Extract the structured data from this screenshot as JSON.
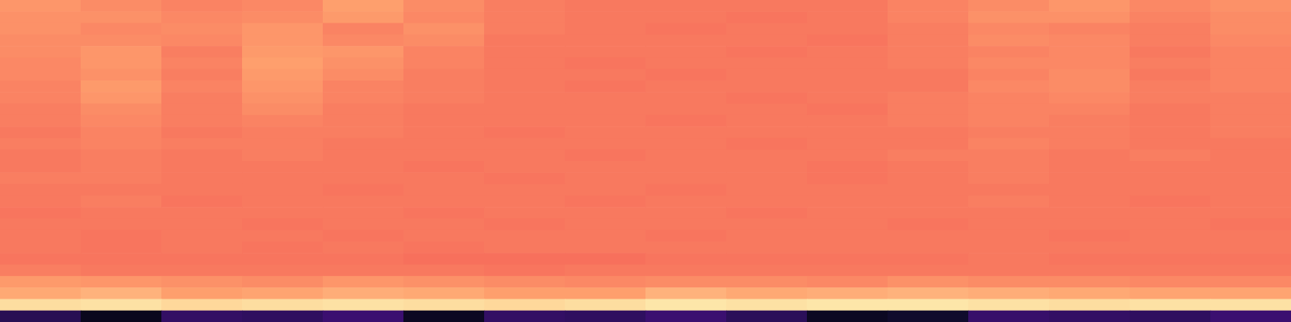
{
  "chart_data": {
    "type": "heatmap",
    "tick_labels": false,
    "xlim": [
      0,
      16
    ],
    "ylim": [
      0,
      28
    ],
    "color_range": [
      0,
      1
    ],
    "cells": [
      [
        0.78,
        0.76,
        0.74,
        0.75,
        0.8,
        0.76,
        0.73,
        0.72,
        0.72,
        0.72,
        0.72,
        0.74,
        0.76,
        0.78,
        0.75,
        0.77
      ],
      [
        0.77,
        0.77,
        0.75,
        0.76,
        0.79,
        0.75,
        0.73,
        0.72,
        0.72,
        0.71,
        0.72,
        0.74,
        0.77,
        0.77,
        0.74,
        0.76
      ],
      [
        0.77,
        0.75,
        0.76,
        0.78,
        0.74,
        0.77,
        0.73,
        0.72,
        0.71,
        0.72,
        0.72,
        0.73,
        0.75,
        0.74,
        0.73,
        0.76
      ],
      [
        0.76,
        0.76,
        0.75,
        0.78,
        0.75,
        0.76,
        0.72,
        0.72,
        0.72,
        0.72,
        0.71,
        0.73,
        0.76,
        0.75,
        0.73,
        0.75
      ],
      [
        0.76,
        0.78,
        0.73,
        0.79,
        0.78,
        0.74,
        0.72,
        0.72,
        0.72,
        0.71,
        0.72,
        0.73,
        0.74,
        0.75,
        0.72,
        0.74
      ],
      [
        0.75,
        0.78,
        0.74,
        0.8,
        0.77,
        0.74,
        0.72,
        0.71,
        0.72,
        0.72,
        0.72,
        0.73,
        0.75,
        0.75,
        0.73,
        0.74
      ],
      [
        0.75,
        0.77,
        0.73,
        0.79,
        0.76,
        0.73,
        0.72,
        0.72,
        0.71,
        0.72,
        0.72,
        0.72,
        0.74,
        0.76,
        0.72,
        0.74
      ],
      [
        0.74,
        0.79,
        0.74,
        0.78,
        0.74,
        0.73,
        0.72,
        0.71,
        0.72,
        0.72,
        0.72,
        0.72,
        0.75,
        0.76,
        0.73,
        0.74
      ],
      [
        0.74,
        0.78,
        0.73,
        0.77,
        0.74,
        0.73,
        0.72,
        0.72,
        0.72,
        0.71,
        0.72,
        0.73,
        0.74,
        0.75,
        0.73,
        0.73
      ],
      [
        0.73,
        0.76,
        0.73,
        0.76,
        0.73,
        0.72,
        0.72,
        0.72,
        0.72,
        0.72,
        0.71,
        0.73,
        0.74,
        0.74,
        0.72,
        0.73
      ],
      [
        0.73,
        0.75,
        0.73,
        0.74,
        0.73,
        0.72,
        0.72,
        0.72,
        0.71,
        0.72,
        0.72,
        0.73,
        0.74,
        0.73,
        0.72,
        0.73
      ],
      [
        0.72,
        0.74,
        0.72,
        0.73,
        0.73,
        0.72,
        0.71,
        0.72,
        0.72,
        0.72,
        0.72,
        0.72,
        0.73,
        0.73,
        0.72,
        0.73
      ],
      [
        0.73,
        0.74,
        0.73,
        0.73,
        0.72,
        0.72,
        0.72,
        0.72,
        0.72,
        0.71,
        0.72,
        0.72,
        0.74,
        0.73,
        0.72,
        0.72
      ],
      [
        0.72,
        0.73,
        0.72,
        0.73,
        0.72,
        0.72,
        0.72,
        0.71,
        0.72,
        0.72,
        0.72,
        0.73,
        0.73,
        0.72,
        0.73,
        0.72
      ],
      [
        0.72,
        0.73,
        0.72,
        0.72,
        0.72,
        0.71,
        0.72,
        0.72,
        0.72,
        0.72,
        0.71,
        0.72,
        0.73,
        0.72,
        0.72,
        0.72
      ],
      [
        0.73,
        0.73,
        0.72,
        0.72,
        0.72,
        0.72,
        0.71,
        0.72,
        0.72,
        0.72,
        0.71,
        0.72,
        0.73,
        0.72,
        0.72,
        0.72
      ],
      [
        0.72,
        0.72,
        0.72,
        0.72,
        0.71,
        0.72,
        0.72,
        0.72,
        0.71,
        0.72,
        0.72,
        0.72,
        0.72,
        0.72,
        0.72,
        0.72
      ],
      [
        0.72,
        0.73,
        0.71,
        0.72,
        0.72,
        0.72,
        0.72,
        0.71,
        0.72,
        0.72,
        0.72,
        0.72,
        0.73,
        0.72,
        0.71,
        0.72
      ],
      [
        0.71,
        0.72,
        0.72,
        0.72,
        0.72,
        0.71,
        0.72,
        0.72,
        0.72,
        0.71,
        0.72,
        0.72,
        0.72,
        0.72,
        0.72,
        0.72
      ],
      [
        0.72,
        0.72,
        0.72,
        0.71,
        0.72,
        0.72,
        0.71,
        0.72,
        0.72,
        0.72,
        0.72,
        0.71,
        0.72,
        0.72,
        0.72,
        0.71
      ],
      [
        0.72,
        0.71,
        0.72,
        0.72,
        0.71,
        0.72,
        0.72,
        0.72,
        0.71,
        0.72,
        0.72,
        0.72,
        0.72,
        0.71,
        0.72,
        0.72
      ],
      [
        0.72,
        0.71,
        0.72,
        0.71,
        0.72,
        0.71,
        0.72,
        0.72,
        0.72,
        0.72,
        0.72,
        0.72,
        0.72,
        0.72,
        0.72,
        0.72
      ],
      [
        0.71,
        0.71,
        0.71,
        0.71,
        0.71,
        0.7,
        0.7,
        0.7,
        0.71,
        0.71,
        0.71,
        0.71,
        0.72,
        0.71,
        0.71,
        0.71
      ],
      [
        0.73,
        0.72,
        0.72,
        0.72,
        0.72,
        0.72,
        0.71,
        0.72,
        0.72,
        0.72,
        0.72,
        0.72,
        0.72,
        0.72,
        0.72,
        0.72
      ],
      [
        0.79,
        0.78,
        0.77,
        0.76,
        0.78,
        0.77,
        0.76,
        0.75,
        0.76,
        0.76,
        0.75,
        0.77,
        0.76,
        0.76,
        0.75,
        0.75
      ],
      [
        0.82,
        0.84,
        0.8,
        0.81,
        0.83,
        0.82,
        0.8,
        0.8,
        0.84,
        0.82,
        0.83,
        0.84,
        0.83,
        0.82,
        0.81,
        0.81
      ],
      [
        0.93,
        0.94,
        0.92,
        0.93,
        0.94,
        0.93,
        0.92,
        0.93,
        0.95,
        0.94,
        0.95,
        0.95,
        0.94,
        0.93,
        0.94,
        0.94
      ],
      [
        0.15,
        0.05,
        0.18,
        0.17,
        0.2,
        0.06,
        0.18,
        0.17,
        0.2,
        0.16,
        0.06,
        0.08,
        0.19,
        0.18,
        0.17,
        0.2
      ]
    ]
  }
}
